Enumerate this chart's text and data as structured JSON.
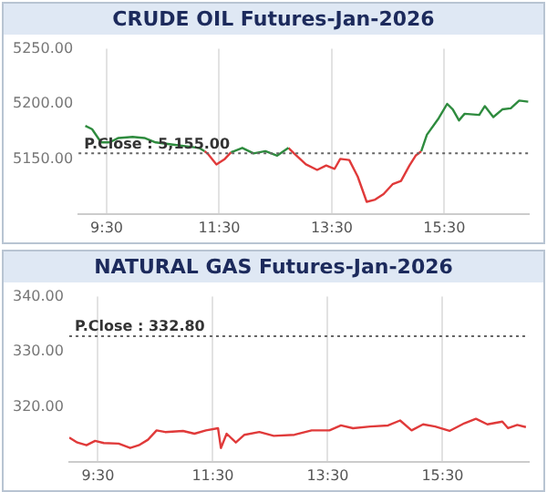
{
  "chart_data": [
    {
      "type": "line",
      "title": "CRUDE OIL Futures-Jan-2026",
      "xlim": [
        9,
        17
      ],
      "xticks": [
        {
          "value": 9.5,
          "label": "9:30"
        },
        {
          "value": 11.5,
          "label": "11:30"
        },
        {
          "value": 13.5,
          "label": "13:30"
        },
        {
          "value": 15.5,
          "label": "15:30"
        }
      ],
      "ylim": [
        5100,
        5250
      ],
      "yticks": [
        {
          "value": 5150,
          "label": "5150.00"
        },
        {
          "value": 5200,
          "label": "5200.00"
        },
        {
          "value": 5250,
          "label": "5250.00"
        }
      ],
      "grid": "x",
      "marker": "none",
      "line_style": "solid",
      "ref_lines": [
        {
          "axis": "y",
          "value": 5155,
          "label": "P.Close : 5,155.00",
          "color": "#666666",
          "line_style": "dotted"
        }
      ],
      "series": [
        {
          "color": "#2e8b3e",
          "x": [
            9.12,
            9.24,
            9.4,
            9.55,
            9.71,
            9.96,
            10.17,
            10.37,
            10.68,
            10.99,
            11.14,
            11.24,
            11.5,
            11.71,
            11.91,
            12.11,
            12.32,
            12.53,
            12.73,
            13,
            15.09,
            15.19,
            15.4,
            15.55,
            15.65,
            15.76,
            15.86,
            16.12,
            16.22,
            16.37,
            16.53,
            16.68,
            16.83,
            16.99
          ],
          "values": [
            5180,
            5177,
            5165,
            5165,
            5169,
            5170,
            5169,
            5165,
            5163,
            5161,
            5160,
            5157,
            null,
            5156,
            5160,
            5155,
            5157,
            5153,
            5160,
            null,
            5157,
            5172,
            5187,
            5200,
            5195,
            5185,
            5191,
            5190,
            5198,
            5188,
            5195,
            5196,
            5203,
            5202
          ]
        },
        {
          "color": "#e03a3a",
          "x": [
            11.24,
            11.29,
            11.45,
            11.6,
            11.71,
            12,
            12.73,
            12.83,
            13.04,
            13.24,
            13.4,
            13.55,
            13.65,
            13.81,
            13.96,
            14.12,
            14.27,
            14.42,
            14.58,
            14.73,
            14.88,
            14.99,
            15.09
          ],
          "values": [
            5157,
            5155,
            5145,
            5150,
            5156,
            null,
            5160,
            5155,
            5145,
            5140,
            5144,
            5141,
            5150,
            5149,
            5134,
            5111,
            5113,
            5118,
            5127,
            5130,
            5144,
            5153,
            5157
          ]
        }
      ]
    },
    {
      "type": "line",
      "title": "NATURAL GAS Futures-Jan-2026",
      "xlim": [
        9,
        17
      ],
      "xticks": [
        {
          "value": 9.5,
          "label": "9:30"
        },
        {
          "value": 11.5,
          "label": "11:30"
        },
        {
          "value": 13.5,
          "label": "13:30"
        },
        {
          "value": 15.5,
          "label": "15:30"
        }
      ],
      "ylim": [
        310,
        340
      ],
      "yticks": [
        {
          "value": 320,
          "label": "320.00"
        },
        {
          "value": 330,
          "label": "330.00"
        },
        {
          "value": 340,
          "label": "340.00"
        }
      ],
      "grid": "x",
      "marker": "none",
      "line_style": "solid",
      "ref_lines": [
        {
          "axis": "y",
          "value": 332.8,
          "label": "P.Close : 332.80",
          "color": "#666666",
          "line_style": "dotted"
        }
      ],
      "series": [
        {
          "color": "#e03a3a",
          "x": [
            9.0,
            9.14,
            9.3,
            9.45,
            9.6,
            9.86,
            10.06,
            10.21,
            10.37,
            10.52,
            10.67,
            10.98,
            11.18,
            11.38,
            11.59,
            11.64,
            11.74,
            11.9,
            12.05,
            12.31,
            12.56,
            12.92,
            13.22,
            13.53,
            13.73,
            13.94,
            14.24,
            14.55,
            14.76,
            14.96,
            15.16,
            15.37,
            15.62,
            15.88,
            16.08,
            16.28,
            16.54,
            16.64,
            16.8,
            16.95
          ],
          "values": [
            314.4,
            313.5,
            313,
            313.8,
            313.4,
            313.3,
            312.5,
            313,
            314,
            315.7,
            315.4,
            315.6,
            315.1,
            315.7,
            316.1,
            312.5,
            315.1,
            313.5,
            314.9,
            315.4,
            314.7,
            314.9,
            315.7,
            315.7,
            316.6,
            316.1,
            316.4,
            316.6,
            317.5,
            315.7,
            316.8,
            316.4,
            315.6,
            317,
            317.8,
            316.8,
            317.3,
            316.1,
            316.7,
            316.3
          ]
        }
      ]
    }
  ]
}
